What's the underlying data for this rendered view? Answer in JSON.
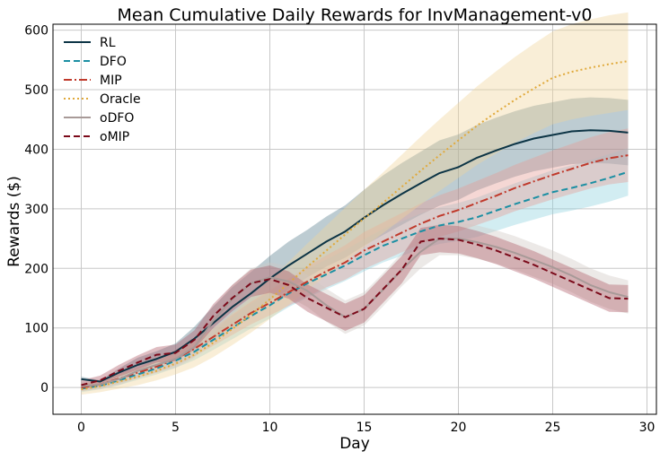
{
  "chart_data": {
    "type": "line",
    "title": "Mean Cumulative Daily Rewards for InvManagement-v0",
    "xlabel": "Day",
    "ylabel": "Rewards ($)",
    "xlim": [
      -1.5,
      30.5
    ],
    "ylim": [
      -45,
      610
    ],
    "xticks": [
      0,
      5,
      10,
      15,
      20,
      25,
      30
    ],
    "yticks": [
      0,
      100,
      200,
      300,
      400,
      500,
      600
    ],
    "grid": true,
    "legend_position": "top-left",
    "x": [
      0,
      1,
      2,
      3,
      4,
      5,
      6,
      7,
      8,
      9,
      10,
      11,
      12,
      13,
      14,
      15,
      16,
      17,
      18,
      19,
      20,
      21,
      22,
      23,
      24,
      25,
      26,
      27,
      28,
      29
    ],
    "series": [
      {
        "name": "RL",
        "color": "#0c3445",
        "dash": "solid",
        "values": [
          14,
          10,
          25,
          38,
          48,
          60,
          82,
          108,
          135,
          158,
          183,
          205,
          225,
          245,
          262,
          285,
          306,
          325,
          343,
          360,
          370,
          386,
          398,
          409,
          418,
          424,
          430,
          432,
          431,
          428
        ],
        "band": [
          [
            12,
            18
          ],
          [
            8,
            12
          ],
          [
            18,
            32
          ],
          [
            26,
            50
          ],
          [
            35,
            61
          ],
          [
            46,
            74
          ],
          [
            62,
            102
          ],
          [
            80,
            136
          ],
          [
            102,
            168
          ],
          [
            122,
            194
          ],
          [
            145,
            221
          ],
          [
            165,
            245
          ],
          [
            185,
            265
          ],
          [
            203,
            287
          ],
          [
            218,
            306
          ],
          [
            238,
            332
          ],
          [
            256,
            356
          ],
          [
            273,
            377
          ],
          [
            290,
            396
          ],
          [
            305,
            415
          ],
          [
            315,
            425
          ],
          [
            331,
            441
          ],
          [
            343,
            453
          ],
          [
            354,
            464
          ],
          [
            363,
            473
          ],
          [
            369,
            479
          ],
          [
            375,
            485
          ],
          [
            377,
            487
          ],
          [
            376,
            486
          ],
          [
            373,
            483
          ]
        ],
        "band_color": "#5b7f8e"
      },
      {
        "name": "DFO",
        "color": "#1b8fa3",
        "dash": "dashed",
        "values": [
          -2,
          3,
          12,
          22,
          32,
          45,
          60,
          80,
          100,
          120,
          138,
          158,
          175,
          190,
          205,
          222,
          238,
          250,
          262,
          272,
          278,
          286,
          297,
          308,
          318,
          328,
          335,
          343,
          352,
          362
        ],
        "band": [
          [
            -8,
            4
          ],
          [
            -3,
            9
          ],
          [
            4,
            20
          ],
          [
            13,
            31
          ],
          [
            22,
            42
          ],
          [
            33,
            57
          ],
          [
            46,
            74
          ],
          [
            63,
            97
          ],
          [
            81,
            119
          ],
          [
            99,
            141
          ],
          [
            116,
            160
          ],
          [
            135,
            181
          ],
          [
            151,
            199
          ],
          [
            165,
            215
          ],
          [
            179,
            231
          ],
          [
            195,
            249
          ],
          [
            210,
            266
          ],
          [
            221,
            279
          ],
          [
            232,
            292
          ],
          [
            241,
            303
          ],
          [
            246,
            310
          ],
          [
            253,
            319
          ],
          [
            263,
            331
          ],
          [
            273,
            343
          ],
          [
            282,
            354
          ],
          [
            291,
            365
          ],
          [
            297,
            373
          ],
          [
            304,
            382
          ],
          [
            312,
            392
          ],
          [
            322,
            402
          ]
        ],
        "band_color": "#8fd1de"
      },
      {
        "name": "MIP",
        "color": "#c0392b",
        "dash": "dashdot",
        "values": [
          0,
          5,
          15,
          25,
          35,
          48,
          65,
          85,
          105,
          125,
          142,
          160,
          178,
          195,
          210,
          230,
          245,
          260,
          275,
          288,
          298,
          310,
          322,
          335,
          346,
          357,
          367,
          377,
          385,
          390
        ],
        "band": [
          [
            -6,
            6
          ],
          [
            -1,
            11
          ],
          [
            7,
            23
          ],
          [
            16,
            34
          ],
          [
            25,
            45
          ],
          [
            37,
            59
          ],
          [
            52,
            78
          ],
          [
            70,
            100
          ],
          [
            88,
            122
          ],
          [
            106,
            144
          ],
          [
            121,
            163
          ],
          [
            137,
            183
          ],
          [
            153,
            203
          ],
          [
            168,
            222
          ],
          [
            181,
            239
          ],
          [
            199,
            261
          ],
          [
            213,
            277
          ],
          [
            227,
            293
          ],
          [
            241,
            309
          ],
          [
            253,
            323
          ],
          [
            262,
            334
          ],
          [
            273,
            347
          ],
          [
            284,
            360
          ],
          [
            296,
            374
          ],
          [
            306,
            386
          ],
          [
            316,
            398
          ],
          [
            325,
            409
          ],
          [
            334,
            420
          ],
          [
            341,
            429
          ],
          [
            345,
            435
          ]
        ],
        "band_color": "#e69a94"
      },
      {
        "name": "Oracle",
        "color": "#e0a93b",
        "dash": "dotted",
        "values": [
          -3,
          2,
          10,
          18,
          28,
          40,
          55,
          75,
          98,
          122,
          148,
          175,
          203,
          230,
          257,
          284,
          310,
          337,
          364,
          390,
          415,
          440,
          462,
          483,
          502,
          520,
          530,
          537,
          543,
          548
        ],
        "band": [
          [
            -12,
            6
          ],
          [
            -8,
            12
          ],
          [
            -2,
            22
          ],
          [
            4,
            32
          ],
          [
            12,
            44
          ],
          [
            22,
            58
          ],
          [
            34,
            76
          ],
          [
            51,
            99
          ],
          [
            71,
            125
          ],
          [
            92,
            152
          ],
          [
            115,
            181
          ],
          [
            139,
            211
          ],
          [
            164,
            242
          ],
          [
            188,
            272
          ],
          [
            212,
            302
          ],
          [
            236,
            332
          ],
          [
            259,
            361
          ],
          [
            283,
            391
          ],
          [
            307,
            421
          ],
          [
            330,
            450
          ],
          [
            352,
            478
          ],
          [
            374,
            506
          ],
          [
            393,
            531
          ],
          [
            411,
            555
          ],
          [
            427,
            577
          ],
          [
            442,
            598
          ],
          [
            450,
            610
          ],
          [
            456,
            618
          ],
          [
            461,
            625
          ],
          [
            466,
            630
          ]
        ],
        "band_color": "#f0d49a"
      },
      {
        "name": "oDFO",
        "color": "#a89a98",
        "dash": "solid",
        "values": [
          2,
          5,
          14,
          28,
          38,
          48,
          68,
          112,
          148,
          175,
          185,
          178,
          162,
          138,
          118,
          132,
          164,
          198,
          228,
          250,
          250,
          244,
          236,
          226,
          214,
          202,
          188,
          172,
          160,
          152
        ],
        "band": [
          [
            -6,
            10
          ],
          [
            -3,
            13
          ],
          [
            4,
            24
          ],
          [
            16,
            40
          ],
          [
            25,
            51
          ],
          [
            33,
            63
          ],
          [
            50,
            86
          ],
          [
            90,
            134
          ],
          [
            124,
            172
          ],
          [
            150,
            200
          ],
          [
            160,
            210
          ],
          [
            152,
            204
          ],
          [
            135,
            189
          ],
          [
            110,
            166
          ],
          [
            90,
            146
          ],
          [
            104,
            160
          ],
          [
            136,
            192
          ],
          [
            170,
            226
          ],
          [
            200,
            256
          ],
          [
            222,
            278
          ],
          [
            222,
            278
          ],
          [
            216,
            272
          ],
          [
            208,
            264
          ],
          [
            198,
            254
          ],
          [
            186,
            242
          ],
          [
            174,
            230
          ],
          [
            160,
            216
          ],
          [
            144,
            200
          ],
          [
            132,
            188
          ],
          [
            124,
            180
          ]
        ],
        "band_color": "#cfc7c4"
      },
      {
        "name": "oMIP",
        "color": "#7b0a1a",
        "dash": "dashed",
        "values": [
          4,
          12,
          28,
          42,
          55,
          58,
          80,
          120,
          150,
          175,
          182,
          172,
          150,
          134,
          118,
          132,
          165,
          198,
          245,
          250,
          248,
          240,
          230,
          218,
          206,
          192,
          178,
          164,
          150,
          149
        ],
        "band": [
          [
            -4,
            12
          ],
          [
            4,
            20
          ],
          [
            18,
            38
          ],
          [
            30,
            54
          ],
          [
            42,
            68
          ],
          [
            44,
            72
          ],
          [
            64,
            96
          ],
          [
            100,
            140
          ],
          [
            128,
            172
          ],
          [
            152,
            198
          ],
          [
            159,
            205
          ],
          [
            149,
            195
          ],
          [
            127,
            173
          ],
          [
            111,
            157
          ],
          [
            95,
            141
          ],
          [
            109,
            155
          ],
          [
            142,
            188
          ],
          [
            175,
            221
          ],
          [
            222,
            268
          ],
          [
            227,
            273
          ],
          [
            225,
            271
          ],
          [
            217,
            263
          ],
          [
            207,
            253
          ],
          [
            195,
            241
          ],
          [
            183,
            229
          ],
          [
            169,
            215
          ],
          [
            155,
            201
          ],
          [
            141,
            187
          ],
          [
            127,
            173
          ],
          [
            126,
            172
          ]
        ],
        "band_color": "#b05a66"
      }
    ]
  }
}
